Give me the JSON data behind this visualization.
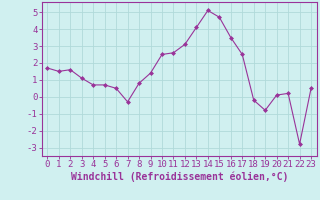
{
  "x": [
    0,
    1,
    2,
    3,
    4,
    5,
    6,
    7,
    8,
    9,
    10,
    11,
    12,
    13,
    14,
    15,
    16,
    17,
    18,
    19,
    20,
    21,
    22,
    23
  ],
  "y": [
    1.7,
    1.5,
    1.6,
    1.1,
    0.7,
    0.7,
    0.5,
    -0.3,
    0.8,
    1.4,
    2.5,
    2.6,
    3.1,
    4.1,
    5.1,
    4.7,
    3.5,
    2.5,
    -0.2,
    -0.8,
    0.1,
    0.2,
    -2.8,
    0.5
  ],
  "line_color": "#993399",
  "marker_color": "#993399",
  "bg_color": "#d0f0f0",
  "grid_color": "#b0dada",
  "xlabel": "Windchill (Refroidissement éolien,°C)",
  "xlim": [
    -0.5,
    23.5
  ],
  "ylim": [
    -3.5,
    5.6
  ],
  "yticks": [
    -3,
    -2,
    -1,
    0,
    1,
    2,
    3,
    4,
    5
  ],
  "xticks": [
    0,
    1,
    2,
    3,
    4,
    5,
    6,
    7,
    8,
    9,
    10,
    11,
    12,
    13,
    14,
    15,
    16,
    17,
    18,
    19,
    20,
    21,
    22,
    23
  ],
  "tick_label_color": "#993399",
  "xlabel_color": "#993399",
  "axis_color": "#993399",
  "font_size": 6.5,
  "xlabel_font_size": 7.0
}
